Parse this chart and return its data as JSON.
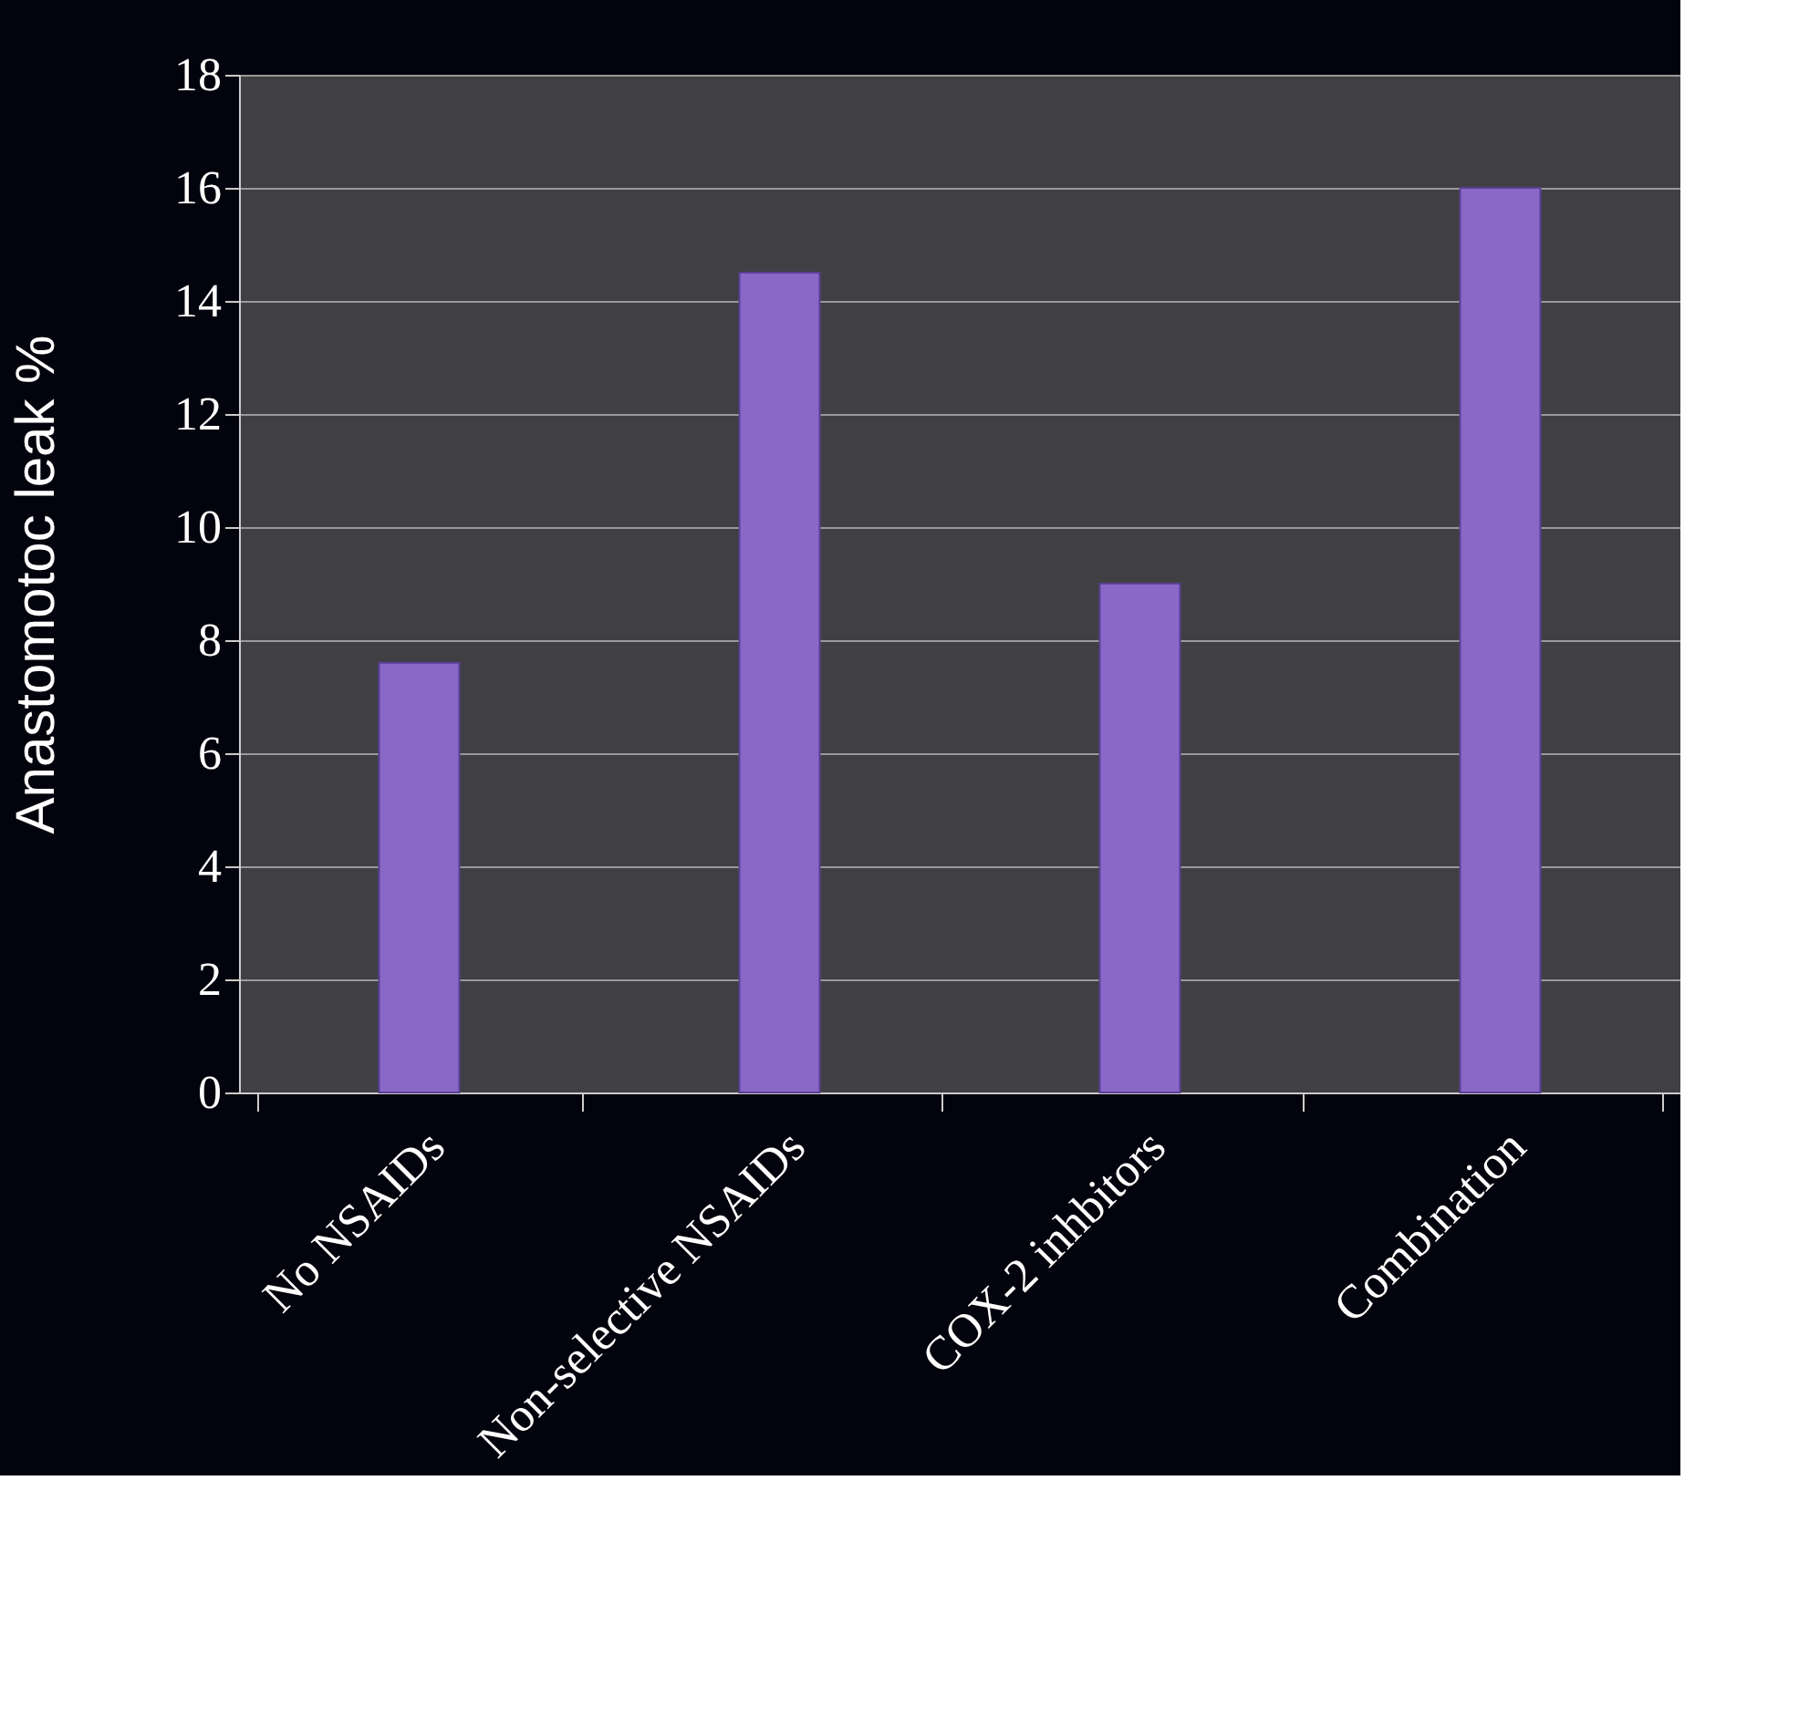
{
  "chart_data": {
    "type": "bar",
    "ylabel": "Anastomotoc leak %",
    "categories": [
      "No NSAIDs",
      "Non-selective NSAIDs",
      "COX-2 inhbitors",
      "Combination"
    ],
    "values": [
      7.6,
      14.5,
      9.0,
      16.0
    ],
    "color": "#8a68c8",
    "ylim": [
      0,
      18
    ],
    "yticks": [
      0,
      2,
      4,
      6,
      8,
      10,
      12,
      14,
      16,
      18
    ],
    "grid": "y"
  }
}
